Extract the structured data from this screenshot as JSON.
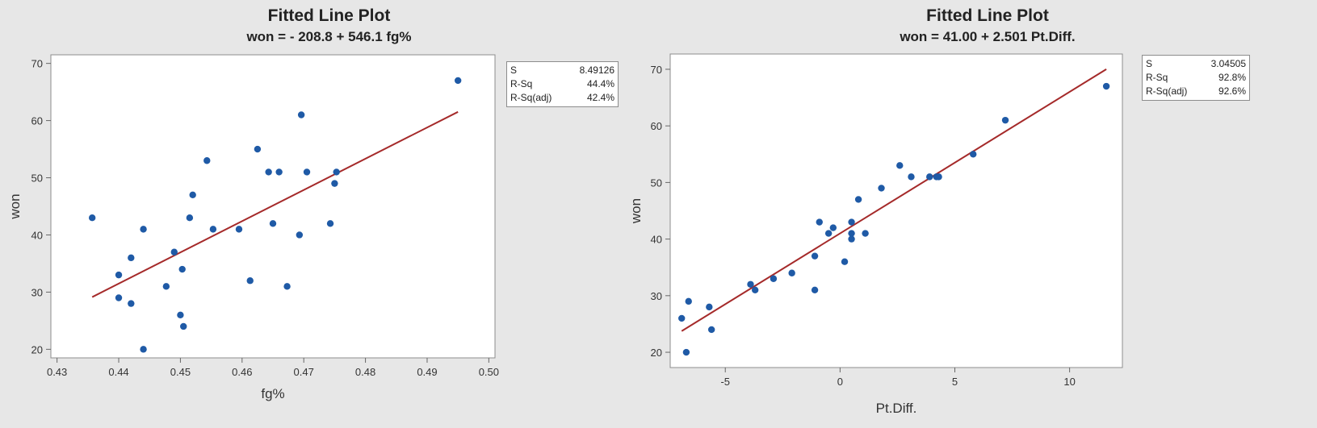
{
  "colors": {
    "background": "#e7e7e7",
    "plot_area": "#ffffff",
    "points": "#1f5aa6",
    "fit_line": "#a52a2a"
  },
  "chart_data": [
    {
      "type": "scatter",
      "title": "Fitted Line Plot",
      "subtitle": "won = - 208.8 + 546.1 fg%",
      "xlabel": "fg%",
      "ylabel": "won",
      "xlim": [
        0.429,
        0.501
      ],
      "ylim": [
        18.5,
        71.5
      ],
      "xticks": [
        0.43,
        0.44,
        0.45,
        0.46,
        0.47,
        0.48,
        0.49,
        0.5
      ],
      "xtick_labels": [
        "0.43",
        "0.44",
        "0.45",
        "0.46",
        "0.47",
        "0.48",
        "0.49",
        "0.50"
      ],
      "yticks": [
        20,
        30,
        40,
        50,
        60,
        70
      ],
      "ytick_labels": [
        "20",
        "30",
        "40",
        "50",
        "60",
        "70"
      ],
      "grid": false,
      "fit": {
        "intercept": -208.8,
        "slope": 546.1,
        "x_range": [
          0.4357,
          0.495
        ]
      },
      "stats": [
        {
          "label": "S",
          "value": "8.49126"
        },
        {
          "label": "R-Sq",
          "value": "44.4%"
        },
        {
          "label": "R-Sq(adj)",
          "value": "42.4%"
        }
      ],
      "points": [
        [
          0.4357,
          43
        ],
        [
          0.44,
          33
        ],
        [
          0.44,
          29
        ],
        [
          0.442,
          36
        ],
        [
          0.442,
          28
        ],
        [
          0.444,
          41
        ],
        [
          0.444,
          20
        ],
        [
          0.4477,
          31
        ],
        [
          0.449,
          37
        ],
        [
          0.45,
          26
        ],
        [
          0.4503,
          34
        ],
        [
          0.4505,
          24
        ],
        [
          0.4515,
          43
        ],
        [
          0.452,
          47
        ],
        [
          0.4543,
          53
        ],
        [
          0.4553,
          41
        ],
        [
          0.4595,
          41
        ],
        [
          0.4613,
          32
        ],
        [
          0.4625,
          55
        ],
        [
          0.4643,
          51
        ],
        [
          0.465,
          42
        ],
        [
          0.466,
          51
        ],
        [
          0.4673,
          31
        ],
        [
          0.4693,
          40
        ],
        [
          0.4696,
          61
        ],
        [
          0.4705,
          51
        ],
        [
          0.4743,
          42
        ],
        [
          0.475,
          49
        ],
        [
          0.4753,
          51
        ],
        [
          0.495,
          67
        ]
      ]
    },
    {
      "type": "scatter",
      "title": "Fitted Line Plot",
      "subtitle": "won = 41.00 + 2.501 Pt.Diff.",
      "xlabel": "Pt.Diff.",
      "ylabel": "won",
      "xlim": [
        -7.4,
        12.3
      ],
      "ylim": [
        17.3,
        72.7
      ],
      "xticks": [
        -5,
        0,
        5,
        10
      ],
      "xtick_labels": [
        "-5",
        "0",
        "5",
        "10"
      ],
      "yticks": [
        20,
        30,
        40,
        50,
        60,
        70
      ],
      "ytick_labels": [
        "20",
        "30",
        "40",
        "50",
        "60",
        "70"
      ],
      "grid": false,
      "fit": {
        "intercept": 41.0,
        "slope": 2.501,
        "x_range": [
          -6.9,
          11.6
        ]
      },
      "stats": [
        {
          "label": "S",
          "value": "3.04505"
        },
        {
          "label": "R-Sq",
          "value": "92.8%"
        },
        {
          "label": "R-Sq(adj)",
          "value": "92.6%"
        }
      ],
      "points": [
        [
          -6.9,
          26
        ],
        [
          -6.7,
          20
        ],
        [
          -6.6,
          29
        ],
        [
          -5.7,
          28
        ],
        [
          -5.6,
          24
        ],
        [
          -3.9,
          32
        ],
        [
          -3.7,
          31
        ],
        [
          -2.9,
          33
        ],
        [
          -2.1,
          34
        ],
        [
          -1.1,
          37
        ],
        [
          -1.1,
          31
        ],
        [
          -0.9,
          43
        ],
        [
          -0.5,
          41
        ],
        [
          -0.3,
          42
        ],
        [
          0.2,
          36
        ],
        [
          0.5,
          43
        ],
        [
          0.5,
          41
        ],
        [
          0.5,
          40
        ],
        [
          0.8,
          47
        ],
        [
          1.1,
          41
        ],
        [
          1.8,
          49
        ],
        [
          2.6,
          53
        ],
        [
          3.1,
          51
        ],
        [
          3.9,
          51
        ],
        [
          4.2,
          51
        ],
        [
          4.3,
          51
        ],
        [
          5.8,
          55
        ],
        [
          7.2,
          61
        ],
        [
          11.6,
          67
        ]
      ]
    }
  ]
}
